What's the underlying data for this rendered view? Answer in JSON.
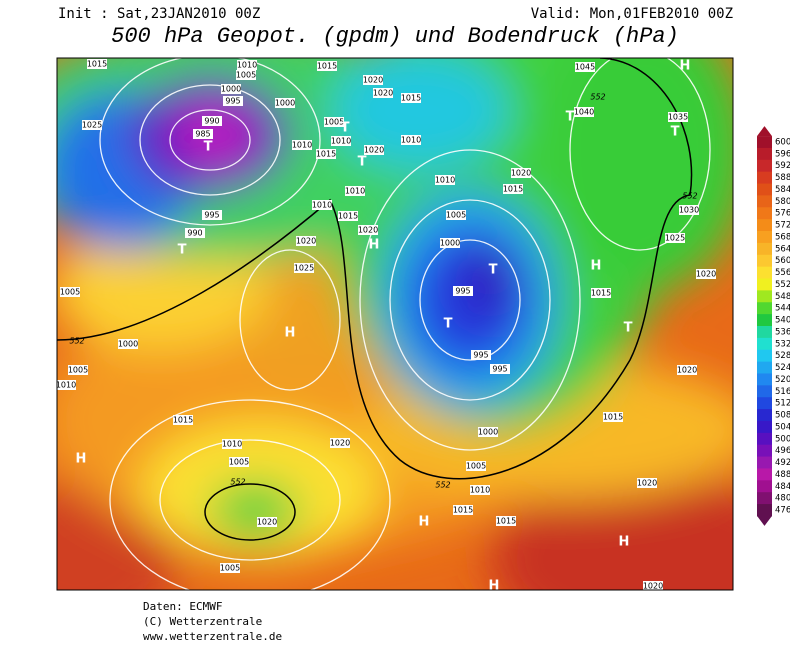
{
  "header": {
    "init": "Init : Sat,23JAN2010 00Z",
    "valid": "Valid: Mon,01FEB2010 00Z",
    "title": "500 hPa Geopot. (gpdm) und Bodendruck (hPa)"
  },
  "colorbar": {
    "levels": [
      600,
      596,
      592,
      588,
      584,
      580,
      576,
      572,
      568,
      564,
      560,
      556,
      552,
      548,
      544,
      540,
      536,
      532,
      528,
      524,
      520,
      516,
      512,
      508,
      504,
      500,
      496,
      492,
      488,
      484,
      480,
      476
    ],
    "colors": [
      "#a0102a",
      "#b81c2a",
      "#c8282a",
      "#d83c20",
      "#e05018",
      "#e86418",
      "#f07818",
      "#f48c18",
      "#f8a020",
      "#f8b428",
      "#fcc830",
      "#fce030",
      "#f0f020",
      "#a0e820",
      "#50d830",
      "#20c840",
      "#20d8a0",
      "#20e0d0",
      "#20c8f0",
      "#20a8f0",
      "#2088f0",
      "#2068e8",
      "#2048e0",
      "#2828d0",
      "#3818c8",
      "#5810c0",
      "#7810b8",
      "#9818b0",
      "#b818a8",
      "#a01090",
      "#801070",
      "#601050"
    ]
  },
  "map": {
    "isobar_labels": [
      "1015",
      "1010",
      "1005",
      "1000",
      "995",
      "990",
      "985",
      "1000",
      "1025",
      "1015",
      "1020",
      "1020",
      "1015",
      "1005",
      "1010",
      "1015",
      "1010",
      "1020",
      "1010",
      "1010",
      "1015",
      "1020",
      "1010",
      "995",
      "990",
      "1020",
      "1025",
      "1005",
      "1000",
      "1005",
      "1010",
      "1015",
      "1010",
      "1005",
      "1020",
      "1005",
      "1020",
      "1045",
      "1040",
      "1035",
      "1030",
      "1025",
      "1020",
      "1020",
      "1015",
      "1020",
      "1020",
      "1015",
      "1015",
      "1020",
      "1010",
      "1005",
      "1000",
      "995",
      "995",
      "995",
      "1000",
      "1005",
      "1010",
      "1015",
      "1015"
    ],
    "height_labels": [
      "552",
      "552",
      "552",
      "552",
      "552"
    ],
    "centers": [
      "H",
      "T",
      "T",
      "T",
      "T",
      "H",
      "T",
      "H",
      "H",
      "T",
      "T",
      "H",
      "T",
      "H",
      "H",
      "H",
      "T"
    ]
  },
  "credits": [
    "Daten: ECMWF",
    "(C) Wetterzentrale",
    "www.wetterzentrale.de"
  ]
}
